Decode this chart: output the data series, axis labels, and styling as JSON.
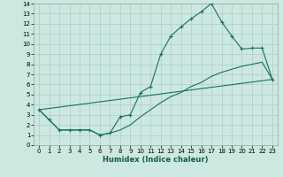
{
  "xlabel": "Humidex (Indice chaleur)",
  "bg_color": "#cce8e0",
  "grid_color": "#aacfc8",
  "line_color": "#1a7060",
  "xlim": [
    -0.5,
    23.5
  ],
  "ylim": [
    0,
    14
  ],
  "xticks": [
    0,
    1,
    2,
    3,
    4,
    5,
    6,
    7,
    8,
    9,
    10,
    11,
    12,
    13,
    14,
    15,
    16,
    17,
    18,
    19,
    20,
    21,
    22,
    23
  ],
  "yticks": [
    0,
    1,
    2,
    3,
    4,
    5,
    6,
    7,
    8,
    9,
    10,
    11,
    12,
    13,
    14
  ],
  "curve1_x": [
    0,
    1,
    2,
    3,
    4,
    5,
    6,
    7,
    8,
    9,
    10,
    11,
    12,
    13,
    14,
    15,
    16,
    17,
    18,
    19,
    20,
    21,
    22,
    23
  ],
  "curve1_y": [
    3.5,
    2.5,
    1.5,
    1.5,
    1.5,
    1.5,
    1.0,
    1.2,
    2.8,
    3.0,
    5.2,
    5.8,
    9.0,
    10.8,
    11.7,
    12.5,
    13.2,
    14.0,
    12.2,
    10.8,
    9.5,
    9.6,
    9.6,
    6.5
  ],
  "curve2_x": [
    0,
    23
  ],
  "curve2_y": [
    3.5,
    6.5
  ],
  "curve3_x": [
    0,
    1,
    2,
    3,
    4,
    5,
    6,
    7,
    8,
    9,
    10,
    11,
    12,
    13,
    14,
    15,
    16,
    17,
    18,
    19,
    20,
    21,
    22,
    23
  ],
  "curve3_y": [
    3.5,
    2.5,
    1.5,
    1.5,
    1.5,
    1.5,
    1.0,
    1.2,
    1.5,
    2.0,
    2.8,
    3.5,
    4.2,
    4.8,
    5.2,
    5.8,
    6.2,
    6.8,
    7.2,
    7.5,
    7.8,
    8.0,
    8.2,
    6.5
  ],
  "xlabel_fontsize": 6,
  "tick_fontsize": 5
}
